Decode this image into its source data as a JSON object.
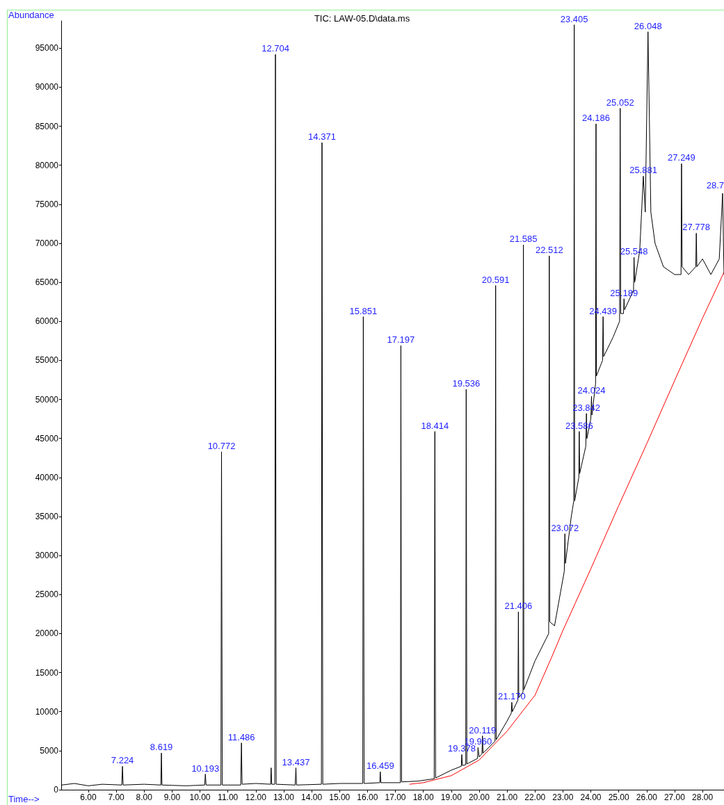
{
  "chart_data": {
    "type": "line",
    "title": "TIC: LAW-05.D\\data.ms",
    "xlabel": "Time-->",
    "ylabel": "Abundance",
    "series": [
      {
        "color": "#000000",
        "x": [
          5.05,
          5.5,
          6.0,
          6.5,
          7.2,
          7.224,
          7.25,
          8.0,
          8.6,
          8.619,
          8.64,
          9.5,
          10.17,
          10.193,
          10.22,
          10.75,
          10.772,
          10.8,
          11.46,
          11.486,
          11.51,
          12.0,
          12.53,
          12.55,
          12.57,
          12.68,
          12.704,
          12.73,
          13.41,
          13.437,
          13.46,
          14.35,
          14.371,
          14.4,
          15.0,
          15.83,
          15.851,
          15.88,
          16.44,
          16.459,
          16.48,
          17.18,
          17.197,
          17.22,
          17.8,
          18.39,
          18.414,
          18.44,
          19.0,
          19.36,
          19.378,
          19.4,
          19.52,
          19.536,
          19.56,
          19.94,
          19.96,
          20.0,
          20.1,
          20.119,
          20.14,
          20.57,
          20.591,
          20.61,
          21.0,
          21.15,
          21.17,
          21.19,
          21.39,
          21.406,
          21.42,
          21.57,
          21.585,
          21.6,
          22.0,
          22.49,
          22.512,
          22.53,
          22.7,
          23.05,
          23.072,
          23.09,
          23.3,
          23.39,
          23.405,
          23.42,
          23.57,
          23.586,
          23.6,
          23.82,
          23.842,
          23.86,
          24.0,
          24.024,
          24.04,
          24.17,
          24.186,
          24.2,
          24.42,
          24.439,
          24.46,
          24.8,
          25.03,
          25.052,
          25.07,
          25.17,
          25.189,
          25.21,
          25.53,
          25.548,
          25.57,
          25.75,
          25.881,
          25.95,
          26.048,
          26.15,
          26.3,
          26.6,
          27.0,
          27.23,
          27.249,
          27.27,
          27.5,
          27.76,
          27.778,
          27.8,
          28.0,
          28.3,
          28.6,
          28.72,
          28.77
        ],
        "values": [
          600,
          800,
          500,
          700,
          600,
          3000,
          600,
          700,
          600,
          4700,
          600,
          500,
          600,
          2000,
          600,
          600,
          43300,
          600,
          600,
          6000,
          700,
          800,
          700,
          2800,
          700,
          700,
          94200,
          700,
          600,
          2800,
          600,
          700,
          82900,
          700,
          800,
          800,
          60600,
          800,
          900,
          2300,
          900,
          900,
          56900,
          1000,
          1100,
          1400,
          45900,
          1500,
          2500,
          3000,
          4500,
          3100,
          3200,
          51300,
          3300,
          4000,
          5400,
          4200,
          4600,
          6900,
          4700,
          6200,
          64600,
          6400,
          8800,
          9800,
          11200,
          10000,
          11500,
          22800,
          11800,
          12500,
          69800,
          12800,
          16500,
          20000,
          68400,
          21500,
          21000,
          28000,
          32800,
          29000,
          35000,
          37000,
          98000,
          37000,
          40000,
          45900,
          40500,
          44000,
          48200,
          45000,
          47500,
          50400,
          48000,
          52000,
          85300,
          53000,
          55000,
          60600,
          55500,
          58000,
          60000,
          87300,
          61000,
          61000,
          62900,
          61500,
          64000,
          68200,
          65000,
          69000,
          78600,
          74000,
          97100,
          74000,
          70000,
          67000,
          66000,
          66000,
          80200,
          67000,
          66000,
          67000,
          71300,
          67000,
          68000,
          66000,
          68000,
          76400,
          66000
        ]
      },
      {
        "color": "#ff0000",
        "x": [
          17.5,
          18.0,
          19.0,
          20.0,
          21.0,
          22.0,
          22.6,
          23.0,
          24.0,
          25.0,
          26.0,
          27.0,
          28.0,
          28.77
        ],
        "values": [
          700,
          900,
          1800,
          3800,
          7500,
          12100,
          17000,
          20400,
          28300,
          36400,
          44300,
          52400,
          60400,
          66300
        ]
      }
    ],
    "annotations": [
      {
        "text": "7.224",
        "x": 7.224,
        "y": 3000
      },
      {
        "text": "8.619",
        "x": 8.619,
        "y": 4700
      },
      {
        "text": "10.193",
        "x": 10.193,
        "y": 2000
      },
      {
        "text": "10.772",
        "x": 10.772,
        "y": 43300
      },
      {
        "text": "11.486",
        "x": 11.486,
        "y": 6000
      },
      {
        "text": "12.704",
        "x": 12.704,
        "y": 94200
      },
      {
        "text": "13.437",
        "x": 13.437,
        "y": 2800
      },
      {
        "text": "14.371",
        "x": 14.371,
        "y": 82900
      },
      {
        "text": "15.851",
        "x": 15.851,
        "y": 60600
      },
      {
        "text": "16.459",
        "x": 16.459,
        "y": 2300
      },
      {
        "text": "17.197",
        "x": 17.197,
        "y": 56900
      },
      {
        "text": "18.414",
        "x": 18.414,
        "y": 45900
      },
      {
        "text": "19.378",
        "x": 19.378,
        "y": 4500
      },
      {
        "text": "19.536",
        "x": 19.536,
        "y": 51300
      },
      {
        "text": "19.960",
        "x": 19.96,
        "y": 5400
      },
      {
        "text": "20.119",
        "x": 20.119,
        "y": 6900
      },
      {
        "text": "20.591",
        "x": 20.591,
        "y": 64600
      },
      {
        "text": "21.170",
        "x": 21.17,
        "y": 11200
      },
      {
        "text": "21.406",
        "x": 21.406,
        "y": 22800
      },
      {
        "text": "21.585",
        "x": 21.585,
        "y": 69800
      },
      {
        "text": "22.512",
        "x": 22.512,
        "y": 68400
      },
      {
        "text": "23.072",
        "x": 23.072,
        "y": 32800
      },
      {
        "text": "23.405",
        "x": 23.405,
        "y": 98000
      },
      {
        "text": "23.586",
        "x": 23.586,
        "y": 45900
      },
      {
        "text": "23.842",
        "x": 23.842,
        "y": 48200
      },
      {
        "text": "24.024",
        "x": 24.024,
        "y": 50400
      },
      {
        "text": "24.186",
        "x": 24.186,
        "y": 85300
      },
      {
        "text": "24.439",
        "x": 24.439,
        "y": 60600
      },
      {
        "text": "25.052",
        "x": 25.052,
        "y": 87300
      },
      {
        "text": "25.189",
        "x": 25.189,
        "y": 62900
      },
      {
        "text": "25.548",
        "x": 25.548,
        "y": 68200
      },
      {
        "text": "25.881",
        "x": 25.881,
        "y": 78600
      },
      {
        "text": "26.048",
        "x": 26.048,
        "y": 97100
      },
      {
        "text": "27.249",
        "x": 27.249,
        "y": 80200
      },
      {
        "text": "27.778",
        "x": 27.778,
        "y": 71300
      },
      {
        "text": "28.7",
        "x": 28.72,
        "y": 76400
      }
    ],
    "xlim": [
      5.03,
      28.77
    ],
    "xticks": [
      {
        "value": 6,
        "label": "6.00"
      },
      {
        "value": 7,
        "label": "7.00"
      },
      {
        "value": 8,
        "label": "8.00"
      },
      {
        "value": 9,
        "label": "9.00"
      },
      {
        "value": 10,
        "label": "10.00"
      },
      {
        "value": 11,
        "label": "11.00"
      },
      {
        "value": 12,
        "label": "12.00"
      },
      {
        "value": 13,
        "label": "13.00"
      },
      {
        "value": 14,
        "label": "14.00"
      },
      {
        "value": 15,
        "label": "15.00"
      },
      {
        "value": 16,
        "label": "16.00"
      },
      {
        "value": 17,
        "label": "17.00"
      },
      {
        "value": 18,
        "label": "18.00"
      },
      {
        "value": 19,
        "label": "19.00"
      },
      {
        "value": 20,
        "label": "20.00"
      },
      {
        "value": 21,
        "label": "21.00"
      },
      {
        "value": 22,
        "label": "22.00"
      },
      {
        "value": 23,
        "label": "23.00"
      },
      {
        "value": 24,
        "label": "24.00"
      },
      {
        "value": 25,
        "label": "25.00"
      },
      {
        "value": 26,
        "label": "26.00"
      },
      {
        "value": 27,
        "label": "27.00"
      },
      {
        "value": 28,
        "label": "28.00"
      }
    ],
    "ylim": [
      0,
      98500
    ],
    "yticks": [
      0,
      5000,
      10000,
      15000,
      20000,
      25000,
      30000,
      35000,
      40000,
      45000,
      50000,
      55000,
      60000,
      65000,
      70000,
      75000,
      80000,
      85000,
      90000,
      95000
    ],
    "grid": false,
    "marker": "none",
    "line_style": "solid"
  }
}
